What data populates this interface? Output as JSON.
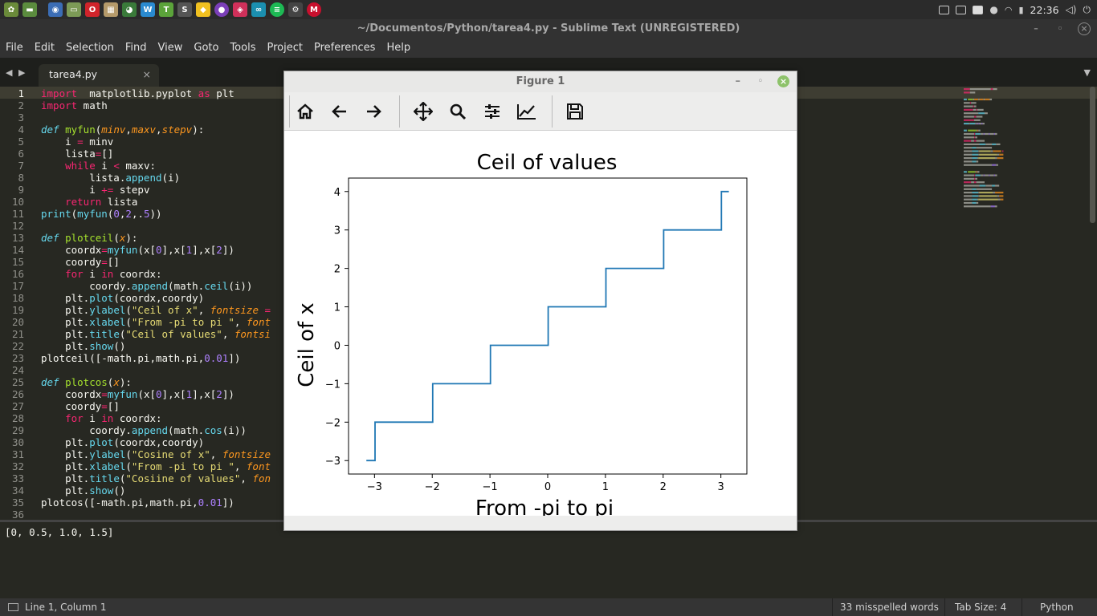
{
  "system": {
    "clock": "22:36"
  },
  "window": {
    "title": "~/Documentos/Python/tarea4.py - Sublime Text (UNREGISTERED)"
  },
  "menu": [
    "File",
    "Edit",
    "Selection",
    "Find",
    "View",
    "Goto",
    "Tools",
    "Project",
    "Preferences",
    "Help"
  ],
  "tab": {
    "label": "tarea4.py",
    "close": "×"
  },
  "output": {
    "text": "[0, 0.5, 1.0, 1.5]"
  },
  "statusbar": {
    "position": "Line 1, Column 1",
    "spelling": "33 misspelled words",
    "tabsize": "Tab Size: 4",
    "syntax": "Python"
  },
  "figure": {
    "title": "Figure 1",
    "toolbar_icons": [
      "home-icon",
      "back-icon",
      "forward-icon",
      "pan-icon",
      "zoom-icon",
      "configure-subplots-icon",
      "edit-axis-icon",
      "save-icon"
    ]
  },
  "colors": {
    "line": "#1f77b4",
    "editor_bg": "#272822",
    "keyword": "#f92672",
    "function": "#a6e22e",
    "string": "#e6db74",
    "number": "#ae81ff",
    "parameter": "#fd971f"
  },
  "chart_data": {
    "type": "line",
    "title": "Ceil of values",
    "xlabel": "From -pi to pi",
    "ylabel": "Ceil of x",
    "xlim": [
      -3.45,
      3.45
    ],
    "ylim": [
      -3.35,
      4.35
    ],
    "xticks": [
      -3,
      -2,
      -1,
      0,
      1,
      2,
      3
    ],
    "xtick_labels": [
      "−3",
      "−2",
      "−1",
      "0",
      "1",
      "2",
      "3"
    ],
    "yticks": [
      -3,
      -2,
      -1,
      0,
      1,
      2,
      3,
      4
    ],
    "ytick_labels": [
      "−3",
      "−2",
      "−1",
      "0",
      "1",
      "2",
      "3",
      "4"
    ],
    "grid": false,
    "legend": "none",
    "series": [
      {
        "x": [
          -3.1416,
          -2.9916,
          -2.9916,
          -1.9916,
          -1.9916,
          -0.9916,
          -0.9916,
          0.0084,
          0.0084,
          1.0084,
          1.0084,
          2.0084,
          2.0084,
          3.0084,
          3.0084,
          3.1384
        ],
        "values": [
          -3,
          -3,
          -2,
          -2,
          -1,
          -1,
          0,
          0,
          1,
          1,
          2,
          2,
          3,
          3,
          4,
          4
        ]
      }
    ]
  },
  "code_lines": [
    [
      [
        "kw",
        "import"
      ],
      [
        "",
        "  matplotlib.pyplot "
      ],
      [
        "kw",
        "as"
      ],
      [
        "",
        " plt"
      ]
    ],
    [
      [
        "kw",
        "import"
      ],
      [
        "",
        " math"
      ]
    ],
    [],
    [
      [
        "df",
        "def"
      ],
      [
        "",
        " "
      ],
      [
        "fn",
        "myfun"
      ],
      [
        "",
        "("
      ],
      [
        "pr",
        "minv"
      ],
      [
        "",
        ","
      ],
      [
        "pr",
        "maxv"
      ],
      [
        "",
        ","
      ],
      [
        "pr",
        "stepv"
      ],
      [
        "",
        "):"
      ]
    ],
    [
      [
        "",
        "    i "
      ],
      [
        "op",
        "="
      ],
      [
        "",
        " minv"
      ]
    ],
    [
      [
        "",
        "    lista"
      ],
      [
        "op",
        "="
      ],
      [
        "",
        "[]"
      ]
    ],
    [
      [
        "kw",
        "    while"
      ],
      [
        "",
        " i "
      ],
      [
        "op",
        "<"
      ],
      [
        "",
        " maxv:"
      ]
    ],
    [
      [
        "",
        "        lista."
      ],
      [
        "bi",
        "append"
      ],
      [
        "",
        "(i)"
      ]
    ],
    [
      [
        "",
        "        i "
      ],
      [
        "op",
        "+="
      ],
      [
        "",
        " stepv"
      ]
    ],
    [
      [
        "kw",
        "    return"
      ],
      [
        "",
        " lista"
      ]
    ],
    [
      [
        "bi",
        "print"
      ],
      [
        "",
        "("
      ],
      [
        "bi",
        "myfun"
      ],
      [
        "",
        "("
      ],
      [
        "nu",
        "0"
      ],
      [
        "",
        ","
      ],
      [
        "nu",
        "2"
      ],
      [
        "",
        ",."
      ],
      [
        "nu",
        "5"
      ],
      [
        "",
        "))"
      ]
    ],
    [],
    [
      [
        "df",
        "def"
      ],
      [
        "",
        " "
      ],
      [
        "fn",
        "plotceil"
      ],
      [
        "",
        "("
      ],
      [
        "pr",
        "x"
      ],
      [
        "",
        "):"
      ]
    ],
    [
      [
        "",
        "    coordx"
      ],
      [
        "op",
        "="
      ],
      [
        "bi",
        "myfun"
      ],
      [
        "",
        "(x["
      ],
      [
        "nu",
        "0"
      ],
      [
        "",
        "],x["
      ],
      [
        "nu",
        "1"
      ],
      [
        "",
        "],x["
      ],
      [
        "nu",
        "2"
      ],
      [
        "",
        "])"
      ]
    ],
    [
      [
        "",
        "    coordy"
      ],
      [
        "op",
        "="
      ],
      [
        "",
        "[]"
      ]
    ],
    [
      [
        "kw",
        "    for"
      ],
      [
        "",
        " i "
      ],
      [
        "kw",
        "in"
      ],
      [
        "",
        " coordx:"
      ]
    ],
    [
      [
        "",
        "        coordy."
      ],
      [
        "bi",
        "append"
      ],
      [
        "",
        "(math."
      ],
      [
        "bi",
        "ceil"
      ],
      [
        "",
        "(i))"
      ]
    ],
    [
      [
        "",
        "    plt."
      ],
      [
        "bi",
        "plot"
      ],
      [
        "",
        "(coordx,coordy)"
      ]
    ],
    [
      [
        "",
        "    plt."
      ],
      [
        "bi",
        "ylabel"
      ],
      [
        "",
        "("
      ],
      [
        "st",
        "\"Ceil of x\""
      ],
      [
        "",
        ", "
      ],
      [
        "pr",
        "fontsize"
      ],
      [
        "",
        " "
      ],
      [
        "op",
        "="
      ]
    ],
    [
      [
        "",
        "    plt."
      ],
      [
        "bi",
        "xlabel"
      ],
      [
        "",
        "("
      ],
      [
        "st",
        "\"From -pi to pi \""
      ],
      [
        "",
        ", "
      ],
      [
        "pr",
        "font"
      ]
    ],
    [
      [
        "",
        "    plt."
      ],
      [
        "bi",
        "title"
      ],
      [
        "",
        "("
      ],
      [
        "st",
        "\"Ceil of values\""
      ],
      [
        "",
        ", "
      ],
      [
        "pr",
        "fontsi"
      ]
    ],
    [
      [
        "",
        "    plt."
      ],
      [
        "bi",
        "show"
      ],
      [
        "",
        "()"
      ]
    ],
    [
      [
        "",
        "plotceil([-math.pi,math.pi,"
      ],
      [
        "nu",
        "0.01"
      ],
      [
        "",
        "])"
      ]
    ],
    [],
    [
      [
        "df",
        "def"
      ],
      [
        "",
        " "
      ],
      [
        "fn",
        "plotcos"
      ],
      [
        "",
        "("
      ],
      [
        "pr",
        "x"
      ],
      [
        "",
        "):"
      ]
    ],
    [
      [
        "",
        "    coordx"
      ],
      [
        "op",
        "="
      ],
      [
        "bi",
        "myfun"
      ],
      [
        "",
        "(x["
      ],
      [
        "nu",
        "0"
      ],
      [
        "",
        "],x["
      ],
      [
        "nu",
        "1"
      ],
      [
        "",
        "],x["
      ],
      [
        "nu",
        "2"
      ],
      [
        "",
        "])"
      ]
    ],
    [
      [
        "",
        "    coordy"
      ],
      [
        "op",
        "="
      ],
      [
        "",
        "[]"
      ]
    ],
    [
      [
        "kw",
        "    for"
      ],
      [
        "",
        " i "
      ],
      [
        "kw",
        "in"
      ],
      [
        "",
        " coordx:"
      ]
    ],
    [
      [
        "",
        "        coordy."
      ],
      [
        "bi",
        "append"
      ],
      [
        "",
        "(math."
      ],
      [
        "bi",
        "cos"
      ],
      [
        "",
        "(i))"
      ]
    ],
    [
      [
        "",
        "    plt."
      ],
      [
        "bi",
        "plot"
      ],
      [
        "",
        "(coordx,coordy)"
      ]
    ],
    [
      [
        "",
        "    plt."
      ],
      [
        "bi",
        "ylabel"
      ],
      [
        "",
        "("
      ],
      [
        "st",
        "\"Cosine of x\""
      ],
      [
        "",
        ", "
      ],
      [
        "pr",
        "fontsize"
      ]
    ],
    [
      [
        "",
        "    plt."
      ],
      [
        "bi",
        "xlabel"
      ],
      [
        "",
        "("
      ],
      [
        "st",
        "\"From -pi to pi \""
      ],
      [
        "",
        ", "
      ],
      [
        "pr",
        "font"
      ]
    ],
    [
      [
        "",
        "    plt."
      ],
      [
        "bi",
        "title"
      ],
      [
        "",
        "("
      ],
      [
        "st",
        "\"Cosiine of values\""
      ],
      [
        "",
        ", "
      ],
      [
        "pr",
        "fon"
      ]
    ],
    [
      [
        "",
        "    plt."
      ],
      [
        "bi",
        "show"
      ],
      [
        "",
        "()"
      ]
    ],
    [
      [
        "",
        "plotcos([-math.pi,math.pi,"
      ],
      [
        "nu",
        "0.01"
      ],
      [
        "",
        "])"
      ]
    ],
    []
  ]
}
